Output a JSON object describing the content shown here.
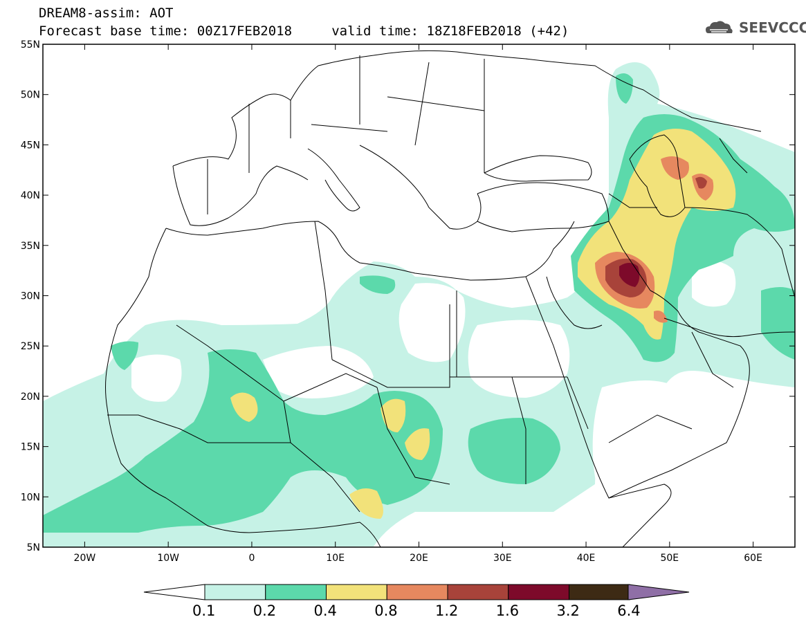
{
  "title": {
    "line1": "DREAM8-assim: AOT",
    "line2": "Forecast base time: 00Z17FEB2018     valid time: 18Z18FEB2018 (+42)"
  },
  "logo": {
    "text": "SEEVCCC",
    "icon": "cloud-icon"
  },
  "map": {
    "projection": "lat-lon",
    "lon_range": [
      -25,
      65
    ],
    "lat_range": [
      5,
      55
    ],
    "lat_ticks": [
      "55N",
      "50N",
      "45N",
      "40N",
      "35N",
      "30N",
      "25N",
      "20N",
      "15N",
      "10N",
      "5N"
    ],
    "lon_ticks": [
      "20W",
      "10W",
      "0",
      "10E",
      "20E",
      "30E",
      "40E",
      "50E",
      "60E"
    ]
  },
  "colorbar": {
    "labels": [
      "0.1",
      "0.2",
      "0.4",
      "0.8",
      "1.2",
      "1.6",
      "3.2",
      "6.4"
    ],
    "colors": [
      "#ffffff",
      "#c6f2e6",
      "#5cd9ab",
      "#f2e27a",
      "#e6885f",
      "#a8433a",
      "#7d0a2a",
      "#3d2a14",
      "#8f6fa6"
    ]
  }
}
